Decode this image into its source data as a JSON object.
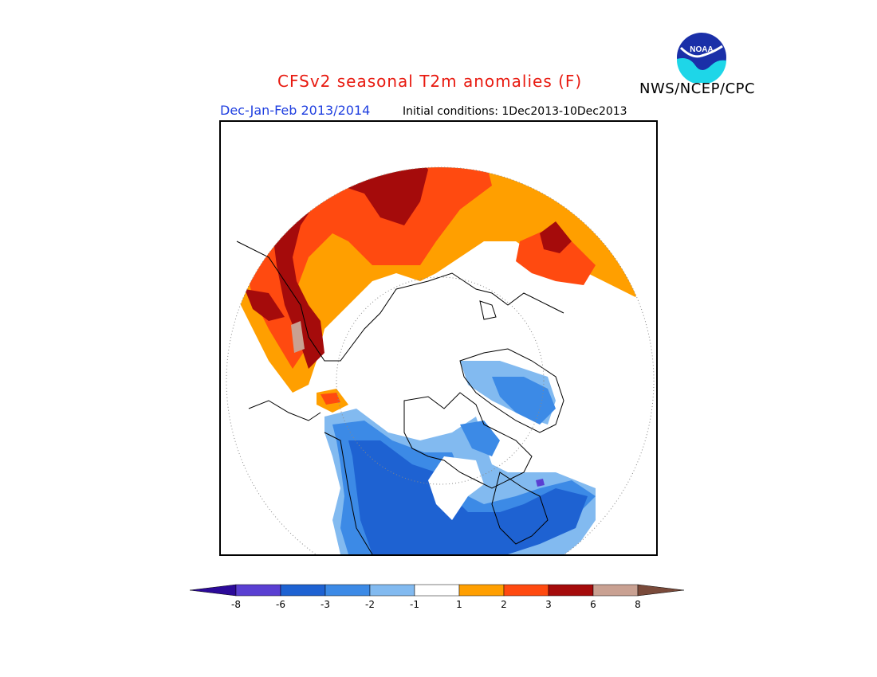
{
  "header": {
    "title": "CFSv2 seasonal T2m anomalies (F)",
    "agency": "NWS/NCEP/CPC",
    "season": "Dec-Jan-Feb 2013/2014",
    "initial_conditions": "Initial conditions: 1Dec2013-10Dec2013"
  },
  "logo": {
    "text": "NOAA",
    "icon": "noaa-logo-icon"
  },
  "map": {
    "projection": "north-polar-stereographic",
    "variable": "2m temperature anomaly",
    "units": "F"
  },
  "legend": {
    "tick_labels": [
      "-8",
      "-6",
      "-3",
      "-2",
      "-1",
      "1",
      "2",
      "3",
      "6",
      "8"
    ],
    "bins": [
      {
        "range": "< -8",
        "color": "#2c0a99"
      },
      {
        "range": "-8 to -6",
        "color": "#5a3fd2"
      },
      {
        "range": "-6 to -3",
        "color": "#1e62d2"
      },
      {
        "range": "-3 to -2",
        "color": "#3c8ae6"
      },
      {
        "range": "-2 to -1",
        "color": "#82baf0"
      },
      {
        "range": "-1 to 1",
        "color": "#ffffff"
      },
      {
        "range": "1 to 2",
        "color": "#ff9f00"
      },
      {
        "range": "2 to 3",
        "color": "#ff4a10"
      },
      {
        "range": "3 to 6",
        "color": "#a50b0b"
      },
      {
        "range": "6 to 8",
        "color": "#c9a192"
      },
      {
        "range": "> 8",
        "color": "#7a4a3a"
      }
    ]
  },
  "colors": {
    "title": "#e8190f",
    "season_label": "#1f3fe0",
    "warm_light": "#ff9f00",
    "warm_mid": "#ff4a10",
    "warm_dark": "#a50b0b",
    "cool_light": "#82baf0",
    "cool_mid": "#3c8ae6",
    "cool_dark": "#1e62d2"
  }
}
